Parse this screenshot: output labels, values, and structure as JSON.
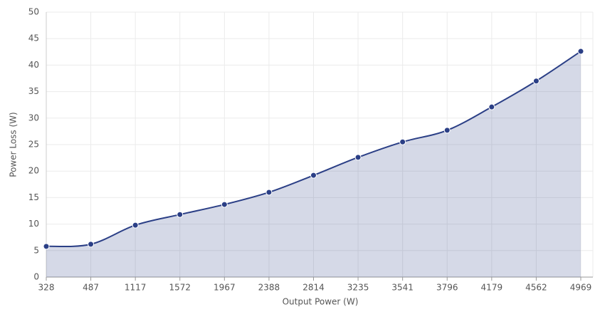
{
  "chart_data": {
    "type": "area",
    "x_label": "Output Power (W)",
    "y_label": "Power Loss (W)",
    "categories": [
      "328",
      "487",
      "1117",
      "1572",
      "1967",
      "2388",
      "2814",
      "3235",
      "3541",
      "3796",
      "4179",
      "4562",
      "4969"
    ],
    "series": [
      {
        "name": "Power Loss",
        "color": "#2b3f86",
        "values": [
          5.8,
          6.2,
          9.8,
          11.8,
          13.7,
          16.0,
          19.2,
          22.6,
          25.5,
          27.7,
          32.1,
          37.0,
          42.6
        ]
      }
    ],
    "ylim": [
      0,
      50
    ],
    "yticks": [
      0,
      5,
      10,
      15,
      20,
      25,
      30,
      35,
      40,
      45,
      50
    ],
    "grid": true
  }
}
